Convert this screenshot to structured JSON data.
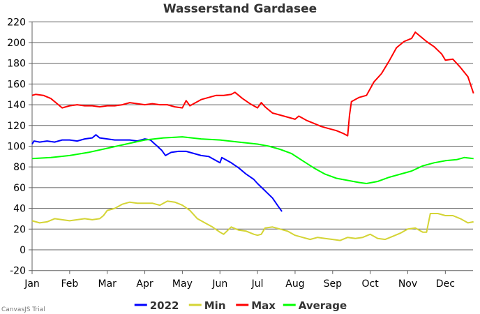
{
  "chart_data": {
    "type": "line",
    "title": "Wasserstand Gardasee",
    "xlabel": "",
    "ylabel": "",
    "ylim": [
      -20,
      220
    ],
    "y_ticks": [
      -20,
      0,
      20,
      40,
      60,
      80,
      100,
      120,
      140,
      160,
      180,
      200,
      220
    ],
    "x_tick_labels": [
      "Jan",
      "Feb",
      "Mar",
      "Apr",
      "May",
      "Jun",
      "Jul",
      "Aug",
      "Sep",
      "Oct",
      "Nov",
      "Dec"
    ],
    "x_unit": "month_index (0 = Jan 1, 1 = Feb 1, ... 11.75 = end of Dec)",
    "grid": true,
    "legend_position": "bottom",
    "series": [
      {
        "name": "2022",
        "color": "#0000ff",
        "x": [
          0,
          0.05,
          0.2,
          0.4,
          0.6,
          0.8,
          1.0,
          1.2,
          1.4,
          1.6,
          1.7,
          1.8,
          2.0,
          2.2,
          2.4,
          2.6,
          2.8,
          3.0,
          3.15,
          3.3,
          3.45,
          3.55,
          3.7,
          3.9,
          4.1,
          4.3,
          4.5,
          4.7,
          4.9,
          5.0,
          5.05,
          5.15,
          5.3,
          5.5,
          5.7,
          5.9,
          6.0,
          6.2,
          6.4,
          6.55,
          6.65
        ],
        "values": [
          102,
          105,
          104,
          105,
          104,
          106,
          106,
          105,
          107,
          108,
          111,
          108,
          107,
          106,
          106,
          106,
          105,
          107,
          106,
          101,
          96,
          91,
          94,
          95,
          95,
          93,
          91,
          90,
          86,
          84,
          89,
          87,
          84,
          79,
          73,
          68,
          64,
          57,
          50,
          42,
          37
        ]
      },
      {
        "name": "Min",
        "color": "#d4d435",
        "x": [
          0,
          0.2,
          0.4,
          0.6,
          0.8,
          1.0,
          1.2,
          1.4,
          1.6,
          1.8,
          1.9,
          2.0,
          2.2,
          2.4,
          2.6,
          2.8,
          3.0,
          3.2,
          3.3,
          3.4,
          3.6,
          3.8,
          4.0,
          4.2,
          4.4,
          4.6,
          4.8,
          5.0,
          5.1,
          5.3,
          5.5,
          5.7,
          5.9,
          6.0,
          6.1,
          6.2,
          6.4,
          6.6,
          6.8,
          7.0,
          7.2,
          7.4,
          7.6,
          7.8,
          8.0,
          8.2,
          8.4,
          8.6,
          8.8,
          9.0,
          9.2,
          9.4,
          9.6,
          9.8,
          10.0,
          10.2,
          10.4,
          10.5,
          10.6,
          10.8,
          11.0,
          11.2,
          11.4,
          11.6,
          11.75
        ],
        "values": [
          28,
          26,
          27,
          30,
          29,
          28,
          29,
          30,
          29,
          30,
          33,
          38,
          40,
          44,
          46,
          45,
          45,
          45,
          44,
          43,
          47,
          46,
          43,
          38,
          30,
          26,
          22,
          17,
          15,
          22,
          19,
          18,
          15,
          14,
          15,
          21,
          22,
          20,
          18,
          14,
          12,
          10,
          12,
          11,
          10,
          9,
          12,
          11,
          12,
          15,
          11,
          10,
          13,
          16,
          20,
          21,
          17,
          17,
          35,
          35,
          33,
          33,
          30,
          26,
          27
        ]
      },
      {
        "name": "Max",
        "color": "#ff0000",
        "x": [
          0,
          0.1,
          0.3,
          0.5,
          0.7,
          0.8,
          1.0,
          1.2,
          1.4,
          1.6,
          1.8,
          2.0,
          2.2,
          2.4,
          2.6,
          2.8,
          3.0,
          3.2,
          3.4,
          3.6,
          3.8,
          4.0,
          4.1,
          4.2,
          4.3,
          4.5,
          4.7,
          4.9,
          5.1,
          5.3,
          5.4,
          5.6,
          5.8,
          6.0,
          6.1,
          6.2,
          6.4,
          6.6,
          6.8,
          7.0,
          7.1,
          7.3,
          7.5,
          7.7,
          7.9,
          8.1,
          8.3,
          8.4,
          8.45,
          8.5,
          8.7,
          8.9,
          9.1,
          9.3,
          9.5,
          9.7,
          9.9,
          10.1,
          10.2,
          10.3,
          10.5,
          10.7,
          10.9,
          11.0,
          11.2,
          11.4,
          11.6,
          11.75
        ],
        "values": [
          149,
          150,
          149,
          146,
          140,
          137,
          139,
          140,
          139,
          139,
          138,
          139,
          139,
          140,
          142,
          141,
          140,
          141,
          140,
          140,
          138,
          137,
          144,
          139,
          141,
          145,
          147,
          149,
          149,
          150,
          152,
          146,
          141,
          137,
          142,
          138,
          132,
          130,
          128,
          126,
          129,
          125,
          122,
          119,
          117,
          115,
          112,
          110,
          130,
          143,
          147,
          149,
          162,
          170,
          182,
          195,
          201,
          204,
          210,
          207,
          201,
          196,
          189,
          183,
          184,
          176,
          167,
          151
        ]
      },
      {
        "name": "Average",
        "color": "#00ff00",
        "x": [
          0,
          0.5,
          1.0,
          1.5,
          2.0,
          2.5,
          3.0,
          3.5,
          4.0,
          4.5,
          5.0,
          5.5,
          6.0,
          6.3,
          6.6,
          6.9,
          7.2,
          7.5,
          7.8,
          8.1,
          8.4,
          8.7,
          8.9,
          9.2,
          9.5,
          9.8,
          10.1,
          10.4,
          10.7,
          11.0,
          11.3,
          11.5,
          11.75
        ],
        "values": [
          88,
          89,
          91,
          94,
          98,
          102,
          106,
          108,
          109,
          107,
          106,
          104,
          102,
          100,
          97,
          93,
          86,
          79,
          73,
          69,
          67,
          65,
          64,
          66,
          70,
          73,
          76,
          81,
          84,
          86,
          87,
          89,
          88
        ]
      }
    ]
  },
  "legend": [
    {
      "label": "2022",
      "color": "#0000ff"
    },
    {
      "label": "Min",
      "color": "#d4d435"
    },
    {
      "label": "Max",
      "color": "#ff0000"
    },
    {
      "label": "Average",
      "color": "#00ff00"
    }
  ],
  "credit": "CanvasJS Trial"
}
